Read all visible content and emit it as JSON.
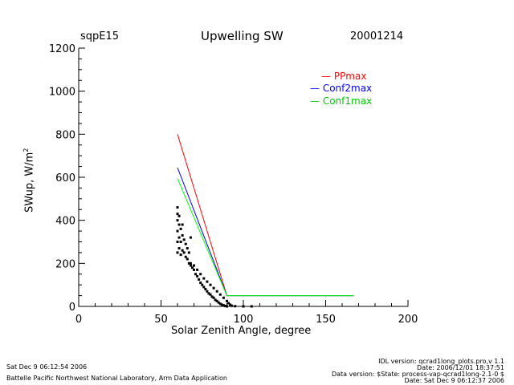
{
  "header": {
    "site": "sqpE15",
    "title": "Upwelling SW",
    "date": "20001214"
  },
  "footer": {
    "left_date": "Sat Dec  9 06:12:54 2006",
    "left_org": "Battelle Pacific Northwest National Laboratory, Arm Data Application",
    "right_lines": [
      "IDL version: qcrad1long_plots.pro,v 1.1",
      "Date: 2006/12/01 18:37:51",
      "Data version: $State: process-vap-qcrad1long-2.1-0 $",
      "Date: Sat Dec  9 06:12:37 2006"
    ]
  },
  "chart_data": {
    "type": "scatter",
    "title": "Upwelling SW",
    "xlabel": "Solar Zenith Angle, degree",
    "ylabel": "SWup, W/m",
    "ylabel_sup": "2",
    "xlim": [
      0,
      200
    ],
    "ylim": [
      0,
      1200
    ],
    "xticks": [
      "0",
      "50",
      "100",
      "150",
      "200"
    ],
    "yticks": [
      "0",
      "200",
      "400",
      "600",
      "800",
      "1000",
      "1200"
    ],
    "legend_position": "top-right",
    "lines": [
      {
        "name": "PPmax",
        "color": "#ff0000",
        "x": [
          60,
          90,
          167
        ],
        "y": [
          800,
          50,
          50
        ]
      },
      {
        "name": "Conf2max",
        "color": "#0000ff",
        "x": [
          60,
          90,
          167
        ],
        "y": [
          645,
          50,
          50
        ]
      },
      {
        "name": "Conf1max",
        "color": "#00ff00",
        "x": [
          60,
          90,
          167
        ],
        "y": [
          595,
          50,
          50
        ]
      }
    ],
    "scatter": {
      "name": "SWup",
      "color": "#000000",
      "x": [
        60,
        60,
        60,
        60,
        60,
        60,
        61,
        61,
        61,
        61,
        62,
        62,
        62,
        63,
        63,
        63,
        64,
        64,
        65,
        65,
        66,
        66,
        67,
        67,
        68,
        68,
        69,
        70,
        71,
        72,
        73,
        74,
        75,
        76,
        77,
        78,
        79,
        80,
        81,
        82,
        83,
        84,
        85,
        86,
        87,
        88,
        89,
        90,
        68,
        70,
        72,
        74,
        76,
        78,
        80,
        82,
        84,
        86,
        88,
        90,
        91,
        92,
        93,
        95,
        100,
        105
      ],
      "y": [
        250,
        300,
        350,
        400,
        430,
        460,
        270,
        320,
        380,
        420,
        240,
        300,
        360,
        260,
        330,
        380,
        250,
        310,
        230,
        290,
        220,
        270,
        200,
        250,
        190,
        320,
        180,
        170,
        150,
        140,
        125,
        110,
        100,
        90,
        80,
        70,
        60,
        55,
        45,
        40,
        30,
        25,
        18,
        12,
        8,
        5,
        2,
        0,
        200,
        190,
        170,
        150,
        130,
        115,
        100,
        85,
        70,
        55,
        40,
        25,
        15,
        8,
        3,
        1,
        0,
        0
      ]
    }
  }
}
